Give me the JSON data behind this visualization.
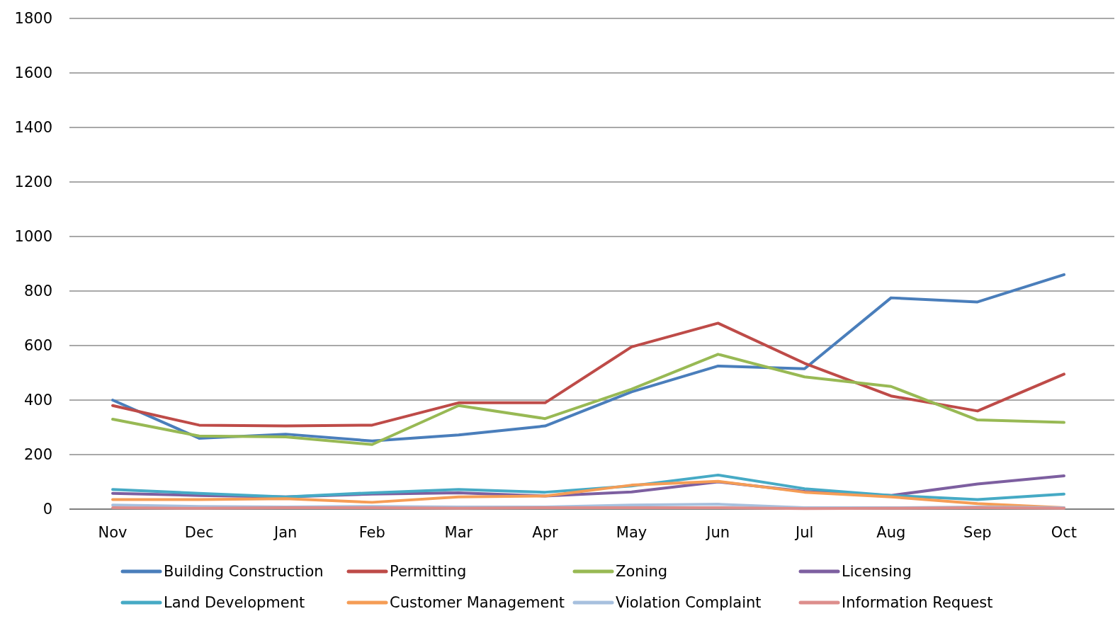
{
  "chart_data": {
    "type": "line",
    "categories": [
      "Nov",
      "Dec",
      "Jan",
      "Feb",
      "Mar",
      "Apr",
      "May",
      "Jun",
      "Jul",
      "Aug",
      "Sep",
      "Oct"
    ],
    "ylim": [
      0,
      1800
    ],
    "yticks": [
      0,
      200,
      400,
      600,
      800,
      1000,
      1200,
      1400,
      1600,
      1800
    ],
    "grid": "y",
    "legend": "bottom",
    "marker": "none",
    "series": [
      {
        "name": "Building Construction",
        "color": "#4a7ebb",
        "values": [
          400,
          260,
          275,
          250,
          272,
          305,
          430,
          525,
          515,
          775,
          760,
          860
        ]
      },
      {
        "name": "Permitting",
        "color": "#be4b48",
        "values": [
          380,
          308,
          305,
          308,
          390,
          390,
          595,
          682,
          535,
          415,
          360,
          495
        ]
      },
      {
        "name": "Zoning",
        "color": "#98b954",
        "values": [
          330,
          268,
          265,
          237,
          380,
          332,
          440,
          568,
          485,
          450,
          327,
          318
        ]
      },
      {
        "name": "Licensing",
        "color": "#7d5fa0",
        "values": [
          58,
          50,
          45,
          55,
          60,
          48,
          63,
          100,
          65,
          50,
          92,
          122
        ]
      },
      {
        "name": "Land Development",
        "color": "#46aac5",
        "values": [
          72,
          58,
          45,
          60,
          72,
          62,
          85,
          125,
          75,
          50,
          35,
          55
        ]
      },
      {
        "name": "Customer Management",
        "color": "#f59d56",
        "values": [
          35,
          35,
          38,
          25,
          45,
          48,
          88,
          102,
          62,
          45,
          20,
          5
        ]
      },
      {
        "name": "Violation Complaint",
        "color": "#a7c0de",
        "values": [
          15,
          10,
          8,
          10,
          8,
          8,
          15,
          18,
          5,
          5,
          8,
          5
        ]
      },
      {
        "name": "Information Request",
        "color": "#dd8e8c",
        "values": [
          5,
          3,
          5,
          5,
          3,
          5,
          5,
          5,
          2,
          3,
          5,
          3
        ]
      }
    ]
  }
}
